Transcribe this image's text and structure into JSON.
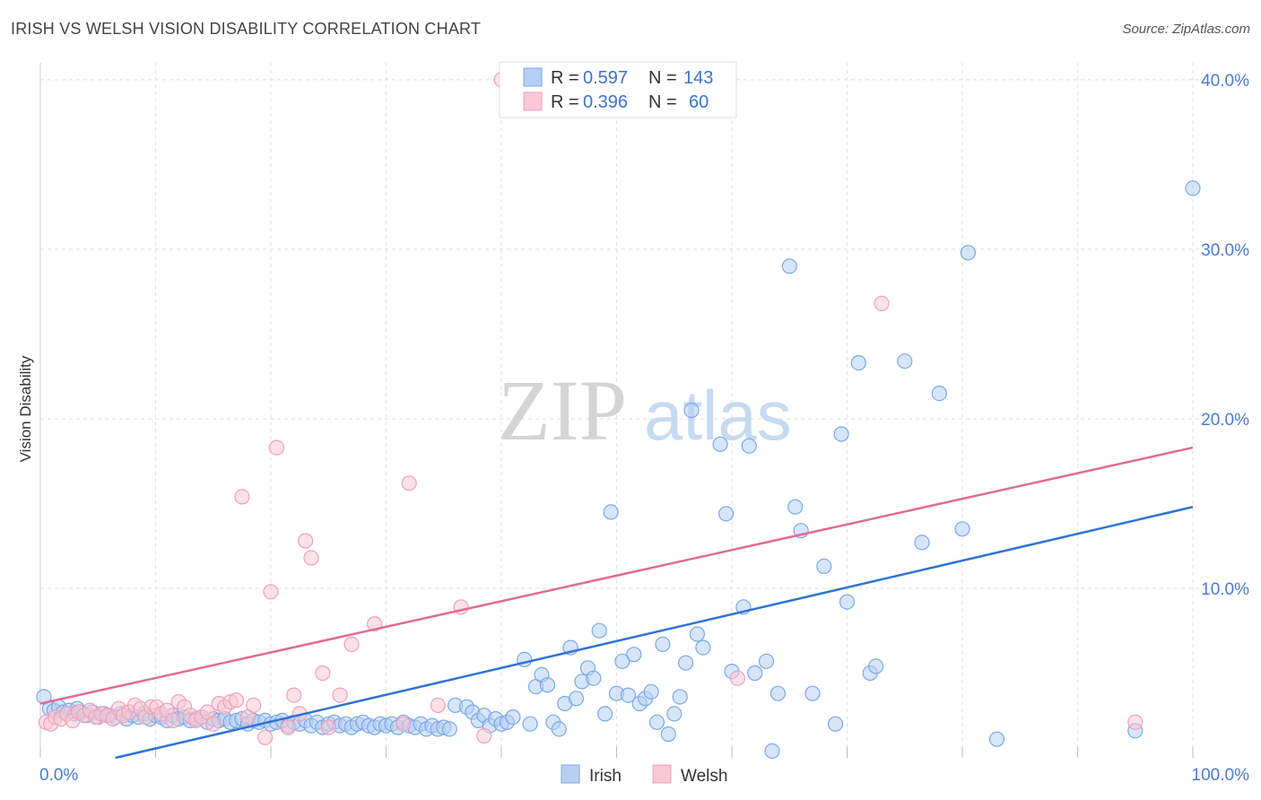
{
  "title": "IRISH VS WELSH VISION DISABILITY CORRELATION CHART",
  "source": "Source: ZipAtlas.com",
  "chart_data": {
    "type": "scatter",
    "title": "IRISH VS WELSH VISION DISABILITY CORRELATION CHART",
    "xlabel": "",
    "ylabel": "Vision Disability",
    "xlim": [
      0,
      100
    ],
    "ylim": [
      0,
      41
    ],
    "x_tick_labels": [
      {
        "value": 0,
        "label": "0.0%"
      },
      {
        "value": 100,
        "label": "100.0%"
      }
    ],
    "y_tick_labels": [
      {
        "value": 10,
        "label": "10.0%"
      },
      {
        "value": 20,
        "label": "20.0%"
      },
      {
        "value": 30,
        "label": "30.0%"
      },
      {
        "value": 40,
        "label": "40.0%"
      }
    ],
    "grid": true,
    "legend_position": "top-center",
    "watermark": {
      "part1": "ZIP",
      "part2": "atlas"
    },
    "legend_stats": [
      {
        "r_label": "R = ",
        "r_value": "0.597",
        "n_label": "N = ",
        "n_value": "143"
      },
      {
        "r_label": "R = ",
        "r_value": "0.396",
        "n_label": "N = ",
        "n_value": "60"
      }
    ],
    "series": [
      {
        "name": "Irish",
        "color": "#7aa8e8",
        "fill": "#b7cff3",
        "trend_color": "#2f73d6",
        "trend": [
          [
            6.5,
            0
          ],
          [
            100,
            14.8
          ]
        ],
        "points": [
          [
            0.3,
            3.6
          ],
          [
            0.8,
            2.9
          ],
          [
            1.2,
            2.8
          ],
          [
            1.6,
            3.0
          ],
          [
            2.0,
            2.7
          ],
          [
            2.5,
            2.8
          ],
          [
            3.0,
            2.6
          ],
          [
            3.5,
            2.7
          ],
          [
            4.0,
            2.5
          ],
          [
            4.5,
            2.7
          ],
          [
            5.0,
            2.4
          ],
          [
            5.5,
            2.6
          ],
          [
            6.0,
            2.5
          ],
          [
            6.5,
            2.4
          ],
          [
            7.0,
            2.6
          ],
          [
            7.5,
            2.3
          ],
          [
            8.0,
            2.5
          ],
          [
            8.5,
            2.4
          ],
          [
            9.0,
            2.6
          ],
          [
            9.5,
            2.3
          ],
          [
            10.0,
            2.5
          ],
          [
            10.5,
            2.4
          ],
          [
            11.0,
            2.2
          ],
          [
            11.5,
            2.5
          ],
          [
            12.0,
            2.3
          ],
          [
            12.5,
            2.4
          ],
          [
            13.0,
            2.2
          ],
          [
            13.5,
            2.3
          ],
          [
            14.0,
            2.4
          ],
          [
            14.5,
            2.1
          ],
          [
            15.0,
            2.3
          ],
          [
            15.5,
            2.2
          ],
          [
            16.0,
            2.3
          ],
          [
            16.5,
            2.1
          ],
          [
            17.0,
            2.2
          ],
          [
            17.5,
            2.3
          ],
          [
            18.0,
            2.0
          ],
          [
            18.5,
            2.2
          ],
          [
            19.0,
            2.1
          ],
          [
            19.5,
            2.2
          ],
          [
            20.0,
            2.0
          ],
          [
            20.5,
            2.1
          ],
          [
            21.0,
            2.2
          ],
          [
            21.5,
            1.9
          ],
          [
            22.0,
            2.1
          ],
          [
            22.5,
            2.0
          ],
          [
            23.0,
            2.2
          ],
          [
            23.5,
            1.9
          ],
          [
            24.0,
            2.1
          ],
          [
            24.5,
            1.8
          ],
          [
            25.0,
            2.0
          ],
          [
            25.5,
            2.1
          ],
          [
            26.0,
            1.9
          ],
          [
            26.5,
            2.0
          ],
          [
            27.0,
            1.8
          ],
          [
            27.5,
            2.0
          ],
          [
            28.0,
            2.1
          ],
          [
            28.5,
            1.9
          ],
          [
            29.0,
            1.8
          ],
          [
            29.5,
            2.0
          ],
          [
            30.0,
            1.9
          ],
          [
            30.5,
            2.0
          ],
          [
            31.0,
            1.8
          ],
          [
            31.5,
            2.1
          ],
          [
            32.0,
            1.9
          ],
          [
            32.5,
            1.8
          ],
          [
            33.0,
            2.0
          ],
          [
            33.5,
            1.7
          ],
          [
            34.0,
            1.9
          ],
          [
            34.5,
            1.7
          ],
          [
            35.0,
            1.8
          ],
          [
            35.5,
            1.7
          ],
          [
            36.0,
            3.1
          ],
          [
            37.0,
            3.0
          ],
          [
            37.5,
            2.7
          ],
          [
            38.0,
            2.2
          ],
          [
            38.5,
            2.5
          ],
          [
            39.0,
            1.9
          ],
          [
            39.5,
            2.3
          ],
          [
            40.0,
            2.0
          ],
          [
            40.5,
            2.1
          ],
          [
            41.0,
            2.4
          ],
          [
            42.0,
            5.8
          ],
          [
            42.5,
            2.0
          ],
          [
            43.0,
            4.2
          ],
          [
            43.5,
            4.9
          ],
          [
            44.0,
            4.3
          ],
          [
            44.5,
            2.1
          ],
          [
            45.0,
            1.7
          ],
          [
            45.5,
            3.2
          ],
          [
            46.0,
            6.5
          ],
          [
            46.5,
            3.5
          ],
          [
            47.0,
            4.5
          ],
          [
            47.5,
            5.3
          ],
          [
            48.0,
            4.7
          ],
          [
            48.5,
            7.5
          ],
          [
            49.0,
            2.6
          ],
          [
            49.5,
            14.5
          ],
          [
            50.0,
            3.8
          ],
          [
            50.5,
            5.7
          ],
          [
            51.0,
            3.7
          ],
          [
            51.5,
            6.1
          ],
          [
            52.0,
            3.2
          ],
          [
            52.5,
            3.5
          ],
          [
            53.0,
            3.9
          ],
          [
            53.5,
            2.1
          ],
          [
            54.0,
            6.7
          ],
          [
            54.5,
            1.4
          ],
          [
            55.0,
            2.6
          ],
          [
            55.5,
            3.6
          ],
          [
            56.0,
            5.6
          ],
          [
            56.5,
            20.5
          ],
          [
            57.0,
            7.3
          ],
          [
            57.5,
            6.5
          ],
          [
            59.0,
            18.5
          ],
          [
            59.5,
            14.4
          ],
          [
            60.0,
            5.1
          ],
          [
            61.0,
            8.9
          ],
          [
            61.5,
            18.4
          ],
          [
            62.0,
            5.0
          ],
          [
            63.0,
            5.7
          ],
          [
            63.5,
            0.4
          ],
          [
            64.0,
            3.8
          ],
          [
            65.0,
            29.0
          ],
          [
            65.5,
            14.8
          ],
          [
            66.0,
            13.4
          ],
          [
            67.0,
            3.8
          ],
          [
            68.0,
            11.3
          ],
          [
            69.0,
            2.0
          ],
          [
            69.5,
            19.1
          ],
          [
            70.0,
            9.2
          ],
          [
            71.0,
            23.3
          ],
          [
            72.0,
            5.0
          ],
          [
            72.5,
            5.4
          ],
          [
            75.0,
            23.4
          ],
          [
            76.5,
            12.7
          ],
          [
            78.0,
            21.5
          ],
          [
            80.0,
            13.5
          ],
          [
            80.5,
            29.8
          ],
          [
            83.0,
            1.1
          ],
          [
            95.0,
            1.6
          ],
          [
            100.0,
            33.6
          ],
          [
            3.2,
            2.9
          ]
        ]
      },
      {
        "name": "Welsh",
        "color": "#f0a0b8",
        "fill": "#f8c8d6",
        "trend_color": "#e36a96",
        "trend": [
          [
            0,
            3.2
          ],
          [
            100,
            18.3
          ]
        ],
        "points": [
          [
            0.5,
            2.1
          ],
          [
            0.9,
            2.0
          ],
          [
            1.3,
            2.4
          ],
          [
            1.8,
            2.3
          ],
          [
            2.3,
            2.6
          ],
          [
            2.8,
            2.2
          ],
          [
            3.3,
            2.7
          ],
          [
            3.8,
            2.5
          ],
          [
            4.3,
            2.8
          ],
          [
            4.8,
            2.4
          ],
          [
            5.3,
            2.6
          ],
          [
            5.8,
            2.5
          ],
          [
            6.3,
            2.3
          ],
          [
            6.8,
            2.9
          ],
          [
            7.2,
            2.5
          ],
          [
            7.7,
            2.7
          ],
          [
            8.2,
            3.1
          ],
          [
            8.7,
            2.9
          ],
          [
            9.1,
            2.4
          ],
          [
            9.6,
            3.0
          ],
          [
            10.1,
            3.0
          ],
          [
            10.5,
            2.6
          ],
          [
            11.0,
            2.8
          ],
          [
            11.5,
            2.2
          ],
          [
            12.0,
            3.3
          ],
          [
            12.5,
            3.0
          ],
          [
            13.0,
            2.5
          ],
          [
            13.5,
            2.2
          ],
          [
            14.0,
            2.4
          ],
          [
            14.5,
            2.7
          ],
          [
            15.0,
            2.0
          ],
          [
            15.5,
            3.2
          ],
          [
            16.0,
            3.0
          ],
          [
            16.5,
            3.3
          ],
          [
            17.0,
            3.4
          ],
          [
            17.5,
            15.4
          ],
          [
            18.0,
            2.4
          ],
          [
            18.5,
            3.1
          ],
          [
            19.5,
            1.2
          ],
          [
            20.0,
            9.8
          ],
          [
            20.5,
            18.3
          ],
          [
            21.5,
            1.8
          ],
          [
            22.0,
            3.7
          ],
          [
            22.5,
            2.6
          ],
          [
            23.0,
            12.8
          ],
          [
            23.5,
            11.8
          ],
          [
            24.5,
            5.0
          ],
          [
            25.0,
            1.8
          ],
          [
            26.0,
            3.7
          ],
          [
            27.0,
            6.7
          ],
          [
            29.0,
            7.9
          ],
          [
            31.5,
            2.0
          ],
          [
            32.0,
            16.2
          ],
          [
            34.5,
            3.1
          ],
          [
            36.5,
            8.9
          ],
          [
            38.5,
            1.3
          ],
          [
            40.0,
            40.0
          ],
          [
            60.5,
            4.7
          ],
          [
            73.0,
            26.8
          ],
          [
            95.0,
            2.1
          ]
        ]
      }
    ]
  },
  "bottom_legend": [
    {
      "label": "Irish"
    },
    {
      "label": "Welsh"
    }
  ]
}
